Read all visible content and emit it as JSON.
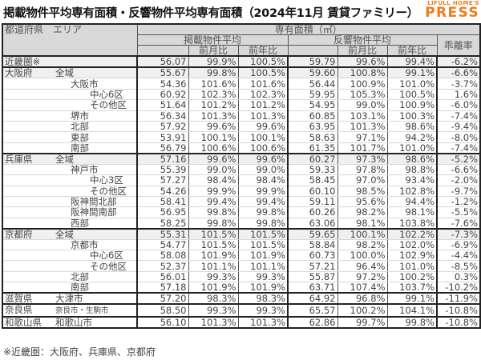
{
  "title": "掲載物件平均専有面積・反響物件平均専有面積（2024年11月 賃貸ファミリー）",
  "logo": {
    "top": "LIFULL HOME'S",
    "main": "PRESS",
    "color": "#f07c1b"
  },
  "header": {
    "area": "都道府県　エリア",
    "group": "専有面積（㎡）",
    "listed": "掲載物件平均",
    "inquiry": "反響物件平均",
    "mom": "前月比",
    "yoy": "前年比",
    "gap": "乖離率"
  },
  "rows": [
    {
      "pref": "近畿圏※",
      "area": "",
      "l": "56.07",
      "lm": "99.9%",
      "ly": "100.5%",
      "i": "59.79",
      "im": "99.6%",
      "iy": "99.4%",
      "g": "-6.2%"
    },
    {
      "pref": "大阪府",
      "area": "全域",
      "l": "55.67",
      "lm": "99.8%",
      "ly": "100.5%",
      "i": "59.60",
      "im": "100.8%",
      "iy": "99.1%",
      "g": "-6.6%"
    },
    {
      "pref": "",
      "area": "大阪市",
      "l": "54.36",
      "lm": "101.6%",
      "ly": "101.6%",
      "i": "56.44",
      "im": "100.9%",
      "iy": "101.0%",
      "g": "-3.7%"
    },
    {
      "pref": "",
      "area": "中心6区",
      "l": "60.92",
      "lm": "102.3%",
      "ly": "102.3%",
      "i": "59.95",
      "im": "105.3%",
      "iy": "100.5%",
      "g": "1.6%"
    },
    {
      "pref": "",
      "area": "その他区",
      "l": "51.64",
      "lm": "101.2%",
      "ly": "101.2%",
      "i": "54.95",
      "im": "99.0%",
      "iy": "100.9%",
      "g": "-6.0%"
    },
    {
      "pref": "",
      "area": "堺市",
      "l": "56.34",
      "lm": "101.3%",
      "ly": "101.3%",
      "i": "60.85",
      "im": "103.1%",
      "iy": "100.3%",
      "g": "-7.4%"
    },
    {
      "pref": "",
      "area": "北部",
      "l": "57.92",
      "lm": "99.6%",
      "ly": "99.6%",
      "i": "63.95",
      "im": "101.3%",
      "iy": "98.6%",
      "g": "-9.4%"
    },
    {
      "pref": "",
      "area": "東部",
      "l": "53.91",
      "lm": "100.1%",
      "ly": "100.1%",
      "i": "58.63",
      "im": "97.1%",
      "iy": "94.2%",
      "g": "-8.0%"
    },
    {
      "pref": "",
      "area": "南部",
      "l": "56.79",
      "lm": "100.6%",
      "ly": "100.6%",
      "i": "61.35",
      "im": "101.7%",
      "iy": "101.0%",
      "g": "-7.4%"
    },
    {
      "pref": "兵庫県",
      "area": "全域",
      "l": "57.16",
      "lm": "99.6%",
      "ly": "99.6%",
      "i": "60.27",
      "im": "97.3%",
      "iy": "98.6%",
      "g": "-5.2%"
    },
    {
      "pref": "",
      "area": "神戸市",
      "l": "55.39",
      "lm": "99.0%",
      "ly": "99.0%",
      "i": "59.33",
      "im": "97.8%",
      "iy": "98.8%",
      "g": "-6.6%"
    },
    {
      "pref": "",
      "area": "中心3区",
      "l": "57.27",
      "lm": "98.4%",
      "ly": "98.4%",
      "i": "58.45",
      "im": "97.0%",
      "iy": "93.4%",
      "g": "-2.0%"
    },
    {
      "pref": "",
      "area": "その他区",
      "l": "54.26",
      "lm": "99.9%",
      "ly": "99.9%",
      "i": "60.10",
      "im": "98.5%",
      "iy": "102.8%",
      "g": "-9.7%"
    },
    {
      "pref": "",
      "area": "阪神間北部",
      "l": "58.41",
      "lm": "99.4%",
      "ly": "99.4%",
      "i": "59.11",
      "im": "95.6%",
      "iy": "94.4%",
      "g": "-1.2%"
    },
    {
      "pref": "",
      "area": "阪神間南部",
      "l": "56.95",
      "lm": "99.8%",
      "ly": "99.8%",
      "i": "60.26",
      "im": "98.2%",
      "iy": "98.1%",
      "g": "-5.5%"
    },
    {
      "pref": "",
      "area": "西部",
      "l": "58.25",
      "lm": "99.8%",
      "ly": "99.8%",
      "i": "63.06",
      "im": "98.1%",
      "iy": "103.8%",
      "g": "-7.6%"
    },
    {
      "pref": "京都府",
      "area": "全域",
      "l": "55.31",
      "lm": "101.5%",
      "ly": "101.5%",
      "i": "59.65",
      "im": "100.1%",
      "iy": "102.2%",
      "g": "-7.3%"
    },
    {
      "pref": "",
      "area": "京都市",
      "l": "54.77",
      "lm": "101.5%",
      "ly": "101.5%",
      "i": "58.84",
      "im": "98.2%",
      "iy": "102.0%",
      "g": "-6.9%"
    },
    {
      "pref": "",
      "area": "中心6区",
      "l": "58.08",
      "lm": "101.9%",
      "ly": "101.9%",
      "i": "60.73",
      "im": "100.0%",
      "iy": "102.9%",
      "g": "-4.4%"
    },
    {
      "pref": "",
      "area": "その他区",
      "l": "52.37",
      "lm": "101.1%",
      "ly": "101.1%",
      "i": "57.21",
      "im": "96.4%",
      "iy": "101.0%",
      "g": "-8.5%"
    },
    {
      "pref": "",
      "area": "北部",
      "l": "56.01",
      "lm": "99.3%",
      "ly": "99.3%",
      "i": "55.87",
      "im": "97.2%",
      "iy": "100.2%",
      "g": "0.3%"
    },
    {
      "pref": "",
      "area": "南部",
      "l": "57.18",
      "lm": "101.9%",
      "ly": "101.9%",
      "i": "63.71",
      "im": "107.4%",
      "iy": "103.7%",
      "g": "-10.2%"
    },
    {
      "pref": "滋賀県",
      "area": "大津市",
      "l": "57.20",
      "lm": "98.3%",
      "ly": "98.3%",
      "i": "64.92",
      "im": "96.8%",
      "iy": "99.1%",
      "g": "-11.9%"
    },
    {
      "pref": "奈良県",
      "area": "奈良市・生駒市",
      "l": "58.50",
      "lm": "99.3%",
      "ly": "99.3%",
      "i": "65.57",
      "im": "100.2%",
      "iy": "104.1%",
      "g": "-10.8%"
    },
    {
      "pref": "和歌山県",
      "area": "和歌山市",
      "l": "56.10",
      "lm": "101.3%",
      "ly": "101.3%",
      "i": "62.86",
      "im": "99.7%",
      "iy": "99.8%",
      "g": "-10.8%"
    }
  ],
  "note": "※近畿圏：大阪府、兵庫県、京都府"
}
